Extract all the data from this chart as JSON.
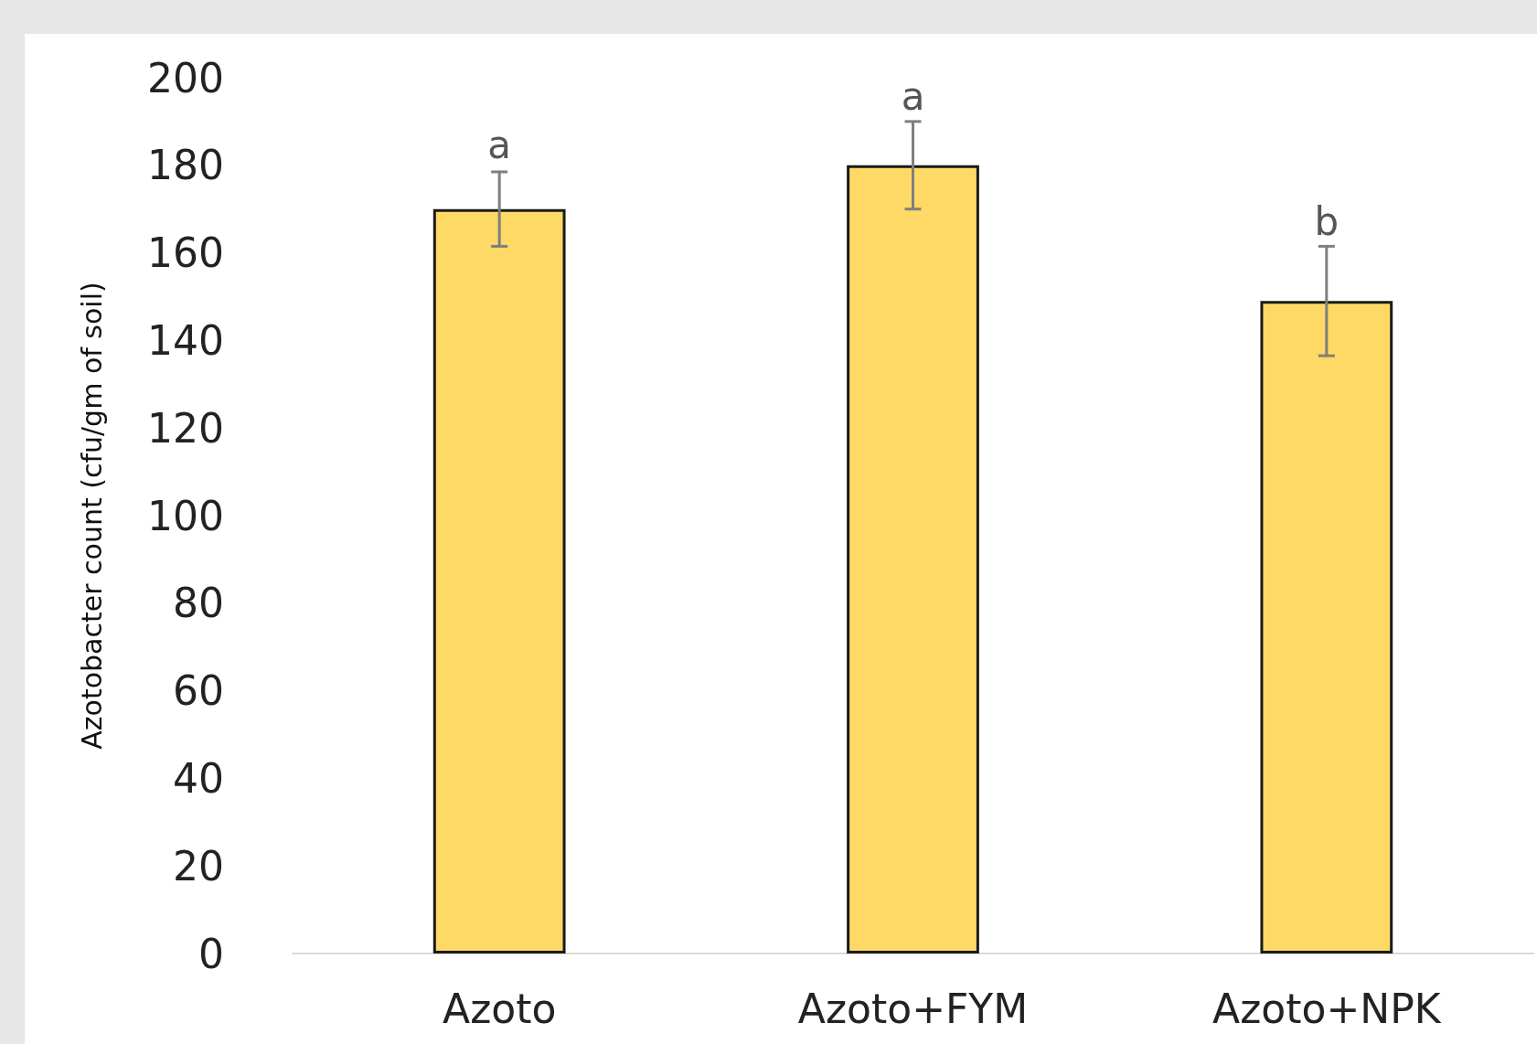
{
  "chart_data": {
    "type": "bar",
    "ylabel": "Azotobacter count (cfu/gm of soil)",
    "categories": [
      "Azoto",
      "Azoto+FYM",
      "Azoto+NPK"
    ],
    "values": [
      170,
      180,
      149
    ],
    "errors": [
      8.5,
      10,
      12.5
    ],
    "color": "#ffd966",
    "ylim": [
      0,
      200
    ],
    "yticks": [
      0,
      20,
      40,
      60,
      80,
      100,
      120,
      140,
      160,
      180,
      200
    ],
    "grid": false,
    "annotations": [
      {
        "text": "a",
        "x": "Azoto",
        "y": 179
      },
      {
        "text": "a",
        "x": "Azoto+FYM",
        "y": 190
      },
      {
        "text": "b",
        "x": "Azoto+NPK",
        "y": 161.5
      }
    ]
  }
}
